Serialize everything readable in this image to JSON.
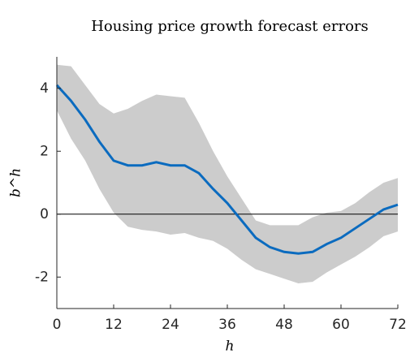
{
  "chart_data": {
    "type": "band-line",
    "title": "Housing price growth forecast errors",
    "x_label": "h",
    "y_label": "b^h",
    "x": [
      0,
      3,
      6,
      9,
      12,
      15,
      18,
      21,
      24,
      27,
      30,
      33,
      36,
      39,
      42,
      45,
      48,
      51,
      54,
      57,
      60,
      63,
      66,
      69,
      72
    ],
    "line": {
      "color": "#0b6bbf",
      "values": [
        4.1,
        3.6,
        3.0,
        2.3,
        1.7,
        1.55,
        1.55,
        1.65,
        1.55,
        1.55,
        1.3,
        0.8,
        0.35,
        -0.2,
        -0.75,
        -1.05,
        -1.2,
        -1.25,
        -1.2,
        -0.95,
        -0.75,
        -0.45,
        -0.15,
        0.15,
        0.3
      ]
    },
    "band": {
      "color": "#cccccc",
      "upper": [
        4.75,
        4.7,
        4.1,
        3.5,
        3.2,
        3.35,
        3.6,
        3.8,
        3.75,
        3.7,
        2.9,
        2.0,
        1.2,
        0.5,
        -0.2,
        -0.35,
        -0.35,
        -0.35,
        -0.1,
        0.05,
        0.1,
        0.35,
        0.7,
        1.0,
        1.15
      ],
      "lower": [
        3.3,
        2.4,
        1.7,
        0.8,
        0.05,
        -0.4,
        -0.5,
        -0.55,
        -0.65,
        -0.6,
        -0.75,
        -0.85,
        -1.1,
        -1.45,
        -1.75,
        -1.9,
        -2.05,
        -2.2,
        -2.15,
        -1.85,
        -1.6,
        -1.35,
        -1.05,
        -0.7,
        -0.55
      ]
    },
    "hline": 0,
    "xlim": [
      0,
      72
    ],
    "xticks": [
      0,
      12,
      24,
      36,
      48,
      60,
      72
    ],
    "ylim": [
      -3,
      5
    ],
    "yticks": [
      -2,
      0,
      2,
      4
    ]
  }
}
